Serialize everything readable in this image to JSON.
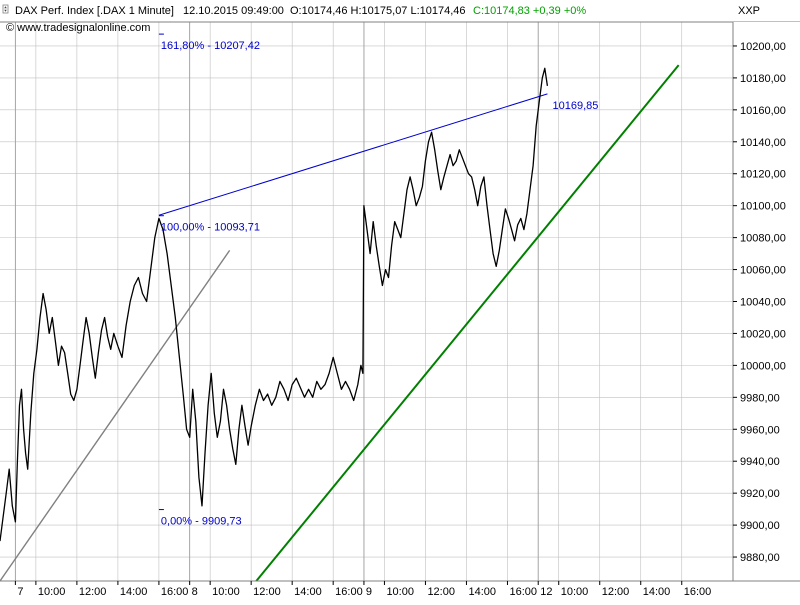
{
  "header": {
    "symbol": "DAX Perf. Index [.DAX  1 Minute]",
    "datetime": "12.10.2015 09:49:00",
    "ohlc": "O:10174,46 H:10175,07 L:10174,46",
    "change": "C:10174,83 +0,39 +0%",
    "exchange": "XXP",
    "source": "© www.tradesignalonline.com"
  },
  "colors": {
    "price": "#000000",
    "grid": "#c0c0c0",
    "trend_blue": "#0000cc",
    "trend_green": "#008000",
    "trend_gray": "#808080",
    "fib_label": "#0000cc",
    "up_change": "#00a000"
  },
  "icons": [
    "sort-arrows-icon"
  ],
  "chart_data": {
    "type": "line",
    "title": "",
    "xlabel": "",
    "ylabel": "",
    "ylim": [
      9865,
      10215
    ],
    "y_ticks": [
      9880,
      9900,
      9920,
      9940,
      9960,
      9980,
      10000,
      10020,
      10040,
      10060,
      10080,
      10100,
      10120,
      10140,
      10160,
      10180,
      10200
    ],
    "y_tick_labels": [
      "9880,00",
      "9900,00",
      "9920,00",
      "9940,00",
      "9960,00",
      "9980,00",
      "10000,00",
      "10020,00",
      "10040,00",
      "10060,00",
      "10080,00",
      "10100,00",
      "10120,00",
      "10140,00",
      "10160,00",
      "10180,00",
      "10200,00"
    ],
    "x_tick_labels": [
      "7",
      "10:00",
      "12:00",
      "14:00",
      "16:00",
      "8",
      "10:00",
      "12:00",
      "14:00",
      "16:00",
      "9",
      "10:00",
      "12:00",
      "14:00",
      "16:00",
      "12",
      "10:00",
      "12:00",
      "14:00",
      "16:00"
    ],
    "x_tick_positions_hours": [
      0,
      1,
      3,
      5,
      7,
      8.5,
      9.5,
      11.5,
      13.5,
      15.5,
      17,
      18,
      20,
      22,
      24,
      25.5,
      26.5,
      28.5,
      30.5,
      32.5
    ],
    "x_domain_hours": [
      -0.75,
      35.0
    ],
    "day_separators_hours": [
      0,
      8.5,
      17,
      25.5
    ],
    "grid": true,
    "series": [
      {
        "type": "price",
        "points": [
          [
            -0.75,
            9890
          ],
          [
            -0.6,
            9905
          ],
          [
            -0.45,
            9920
          ],
          [
            -0.3,
            9935
          ],
          [
            -0.15,
            9912
          ],
          [
            0.0,
            9902
          ],
          [
            0.1,
            9940
          ],
          [
            0.2,
            9975
          ],
          [
            0.3,
            9985
          ],
          [
            0.4,
            9960
          ],
          [
            0.5,
            9945
          ],
          [
            0.6,
            9935
          ],
          [
            0.75,
            9970
          ],
          [
            0.9,
            9995
          ],
          [
            1.05,
            10010
          ],
          [
            1.2,
            10030
          ],
          [
            1.35,
            10045
          ],
          [
            1.5,
            10035
          ],
          [
            1.65,
            10020
          ],
          [
            1.8,
            10030
          ],
          [
            1.95,
            10015
          ],
          [
            2.1,
            10000
          ],
          [
            2.25,
            10012
          ],
          [
            2.4,
            10008
          ],
          [
            2.55,
            9995
          ],
          [
            2.7,
            9982
          ],
          [
            2.85,
            9978
          ],
          [
            3.0,
            9985
          ],
          [
            3.15,
            10000
          ],
          [
            3.3,
            10015
          ],
          [
            3.45,
            10030
          ],
          [
            3.6,
            10020
          ],
          [
            3.75,
            10005
          ],
          [
            3.9,
            9992
          ],
          [
            4.05,
            10008
          ],
          [
            4.2,
            10022
          ],
          [
            4.35,
            10030
          ],
          [
            4.5,
            10018
          ],
          [
            4.65,
            10010
          ],
          [
            4.8,
            10020
          ],
          [
            5.0,
            10012
          ],
          [
            5.2,
            10005
          ],
          [
            5.4,
            10025
          ],
          [
            5.6,
            10040
          ],
          [
            5.8,
            10050
          ],
          [
            6.0,
            10055
          ],
          [
            6.2,
            10045
          ],
          [
            6.4,
            10040
          ],
          [
            6.6,
            10060
          ],
          [
            6.8,
            10080
          ],
          [
            7.0,
            10092
          ],
          [
            7.2,
            10085
          ],
          [
            7.4,
            10070
          ],
          [
            7.6,
            10050
          ],
          [
            7.8,
            10030
          ],
          [
            8.0,
            10005
          ],
          [
            8.2,
            9980
          ],
          [
            8.35,
            9960
          ],
          [
            8.5,
            9955
          ],
          [
            8.65,
            9985
          ],
          [
            8.8,
            9965
          ],
          [
            8.95,
            9930
          ],
          [
            9.1,
            9912
          ],
          [
            9.25,
            9945
          ],
          [
            9.4,
            9975
          ],
          [
            9.55,
            9995
          ],
          [
            9.7,
            9970
          ],
          [
            9.85,
            9955
          ],
          [
            10.0,
            9965
          ],
          [
            10.15,
            9985
          ],
          [
            10.3,
            9975
          ],
          [
            10.45,
            9960
          ],
          [
            10.6,
            9948
          ],
          [
            10.75,
            9938
          ],
          [
            10.9,
            9960
          ],
          [
            11.05,
            9975
          ],
          [
            11.2,
            9962
          ],
          [
            11.35,
            9950
          ],
          [
            11.5,
            9962
          ],
          [
            11.7,
            9975
          ],
          [
            11.9,
            9985
          ],
          [
            12.1,
            9978
          ],
          [
            12.3,
            9982
          ],
          [
            12.5,
            9975
          ],
          [
            12.7,
            9980
          ],
          [
            12.9,
            9990
          ],
          [
            13.1,
            9985
          ],
          [
            13.3,
            9978
          ],
          [
            13.5,
            9988
          ],
          [
            13.7,
            9992
          ],
          [
            13.9,
            9986
          ],
          [
            14.1,
            9980
          ],
          [
            14.3,
            9985
          ],
          [
            14.5,
            9980
          ],
          [
            14.7,
            9990
          ],
          [
            14.9,
            9985
          ],
          [
            15.1,
            9988
          ],
          [
            15.3,
            9995
          ],
          [
            15.5,
            10005
          ],
          [
            15.7,
            9995
          ],
          [
            15.9,
            9985
          ],
          [
            16.1,
            9990
          ],
          [
            16.3,
            9985
          ],
          [
            16.5,
            9978
          ],
          [
            16.7,
            9988
          ],
          [
            16.85,
            10000
          ],
          [
            16.95,
            9995
          ],
          [
            17.0,
            10100
          ],
          [
            17.15,
            10085
          ],
          [
            17.3,
            10070
          ],
          [
            17.45,
            10090
          ],
          [
            17.6,
            10075
          ],
          [
            17.75,
            10062
          ],
          [
            17.9,
            10050
          ],
          [
            18.05,
            10060
          ],
          [
            18.2,
            10055
          ],
          [
            18.35,
            10075
          ],
          [
            18.5,
            10090
          ],
          [
            18.65,
            10085
          ],
          [
            18.8,
            10080
          ],
          [
            18.95,
            10095
          ],
          [
            19.1,
            10110
          ],
          [
            19.25,
            10118
          ],
          [
            19.4,
            10110
          ],
          [
            19.55,
            10100
          ],
          [
            19.7,
            10105
          ],
          [
            19.85,
            10112
          ],
          [
            20.0,
            10128
          ],
          [
            20.15,
            10140
          ],
          [
            20.3,
            10146
          ],
          [
            20.45,
            10135
          ],
          [
            20.6,
            10122
          ],
          [
            20.75,
            10110
          ],
          [
            20.9,
            10118
          ],
          [
            21.05,
            10125
          ],
          [
            21.2,
            10132
          ],
          [
            21.35,
            10125
          ],
          [
            21.5,
            10128
          ],
          [
            21.65,
            10135
          ],
          [
            21.8,
            10130
          ],
          [
            21.95,
            10125
          ],
          [
            22.1,
            10120
          ],
          [
            22.25,
            10118
          ],
          [
            22.4,
            10110
          ],
          [
            22.55,
            10100
          ],
          [
            22.7,
            10112
          ],
          [
            22.85,
            10118
          ],
          [
            23.0,
            10100
          ],
          [
            23.15,
            10085
          ],
          [
            23.3,
            10070
          ],
          [
            23.45,
            10062
          ],
          [
            23.6,
            10072
          ],
          [
            23.75,
            10085
          ],
          [
            23.9,
            10098
          ],
          [
            24.05,
            10092
          ],
          [
            24.2,
            10085
          ],
          [
            24.35,
            10078
          ],
          [
            24.5,
            10088
          ],
          [
            24.65,
            10092
          ],
          [
            24.8,
            10085
          ],
          [
            24.95,
            10095
          ],
          [
            25.1,
            10110
          ],
          [
            25.25,
            10125
          ],
          [
            25.4,
            10150
          ],
          [
            25.55,
            10165
          ],
          [
            25.7,
            10180
          ],
          [
            25.82,
            10186
          ],
          [
            25.95,
            10175
          ]
        ]
      }
    ],
    "trendlines": [
      {
        "color": "blue",
        "from": [
          7.0,
          10094
        ],
        "to": [
          25.95,
          10170
        ]
      },
      {
        "color": "green",
        "from": [
          11.75,
          9865
        ],
        "to": [
          32.35,
          10188
        ]
      },
      {
        "color": "gray",
        "from": [
          -0.75,
          9865
        ],
        "to": [
          10.45,
          10072
        ]
      }
    ],
    "annotations": [
      {
        "text": "161,80% - 10207,42",
        "x": 7.0,
        "y": 10207.42
      },
      {
        "text": "100,00% - 10093,71",
        "x": 7.0,
        "y": 10093.71
      },
      {
        "text": "0,00% - 9909,73",
        "x": 7.0,
        "y": 9909.73
      },
      {
        "text": "10169,85",
        "x": 26.1,
        "y": 10169.85
      }
    ]
  }
}
